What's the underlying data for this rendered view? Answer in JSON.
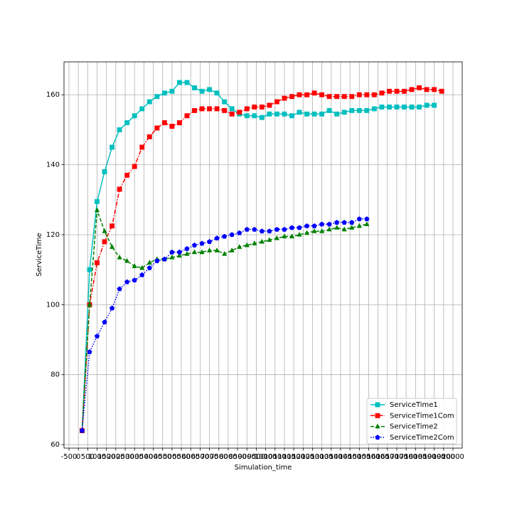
{
  "chart_data": {
    "type": "line",
    "xlabel": "Simulation_time",
    "ylabel": "ServiceTime",
    "xlim": [
      -766,
      20494
    ],
    "ylim": [
      59,
      169.4
    ],
    "xticks": [
      -500,
      0,
      500,
      1000,
      1500,
      2000,
      2500,
      3000,
      3500,
      4000,
      4500,
      5000,
      5500,
      6000,
      6500,
      7000,
      7500,
      8000,
      8500,
      9000,
      9500,
      10000,
      10500,
      11000,
      11500,
      12000,
      12500,
      13000,
      13500,
      14000,
      14500,
      15000,
      15500,
      16000,
      16500,
      17000,
      17500,
      18000,
      18500,
      19000,
      19500,
      20000
    ],
    "yticks": [
      60,
      80,
      100,
      120,
      140,
      160
    ],
    "grid": true,
    "legend": "lower right",
    "series": [
      {
        "name": "ServiceTime1",
        "color": "#00bfbf",
        "marker": "square",
        "linestyle": "solid",
        "x": [
          200,
          600,
          1000,
          1400,
          1800,
          2200,
          2600,
          3000,
          3400,
          3800,
          4200,
          4600,
          5000,
          5400,
          5800,
          6200,
          6600,
          7000,
          7400,
          7800,
          8200,
          8600,
          9000,
          9400,
          9800,
          10200,
          10600,
          11000,
          11400,
          11800,
          12200,
          12600,
          13000,
          13400,
          13800,
          14200,
          14600,
          15000,
          15400,
          15800,
          16200,
          16600,
          17000,
          17400,
          17800,
          18200,
          18600,
          19000
        ],
        "values": [
          64,
          110,
          129.5,
          138,
          145,
          150,
          152,
          154,
          156,
          158,
          159.5,
          160.5,
          161,
          163.5,
          163.5,
          162,
          161,
          161.5,
          160.5,
          158,
          156,
          154.5,
          154,
          154,
          153.5,
          154.5,
          154.5,
          154.5,
          154,
          155,
          154.5,
          154.5,
          154.5,
          155.5,
          154.5,
          155,
          155.5,
          155.5,
          155.5,
          156,
          156.5,
          156.5,
          156.5,
          156.5,
          156.5,
          156.5,
          157,
          157
        ]
      },
      {
        "name": "ServiceTime1Com",
        "color": "#ff0000",
        "marker": "square",
        "linestyle": "dashdot",
        "x": [
          200,
          600,
          1000,
          1400,
          1800,
          2200,
          2600,
          3000,
          3400,
          3800,
          4200,
          4600,
          5000,
          5400,
          5800,
          6200,
          6600,
          7000,
          7400,
          7800,
          8200,
          8600,
          9000,
          9400,
          9800,
          10200,
          10600,
          11000,
          11400,
          11800,
          12200,
          12600,
          13000,
          13400,
          13800,
          14200,
          14600,
          15000,
          15400,
          15800,
          16200,
          16600,
          17000,
          17400,
          17800,
          18200,
          18600,
          19000,
          19400
        ],
        "values": [
          64,
          100,
          112,
          118,
          122.5,
          133,
          137,
          139.5,
          145,
          148,
          150.5,
          152,
          151,
          152,
          154,
          155.5,
          156,
          156,
          156,
          155.5,
          154.5,
          155,
          156,
          156.5,
          156.5,
          157,
          158,
          159,
          159.5,
          160,
          160,
          160.5,
          160,
          159.5,
          159.5,
          159.5,
          159.5,
          160,
          160,
          160,
          160.5,
          161,
          161,
          161,
          161.5,
          162,
          161.5,
          161.5,
          161
        ]
      },
      {
        "name": "ServiceTime2",
        "color": "#008000",
        "marker": "triangle",
        "linestyle": "dashed",
        "x": [
          200,
          600,
          1000,
          1400,
          1800,
          2200,
          2600,
          3000,
          3400,
          3800,
          4200,
          4600,
          5000,
          5400,
          5800,
          6200,
          6600,
          7000,
          7400,
          7800,
          8200,
          8600,
          9000,
          9400,
          9800,
          10200,
          10600,
          11000,
          11400,
          11800,
          12200,
          12600,
          13000,
          13400,
          13800,
          14200,
          14600,
          15000,
          15400
        ],
        "values": [
          64,
          100,
          127,
          121,
          116.5,
          113.5,
          112.5,
          111,
          110.5,
          112,
          113,
          113,
          113.5,
          114,
          114.5,
          115,
          115,
          115.5,
          115.5,
          114.5,
          115.5,
          116.5,
          117,
          117.5,
          118,
          118.5,
          119,
          119.5,
          119.5,
          120,
          120.5,
          121,
          121,
          121.5,
          122,
          121.5,
          122,
          122.5,
          123
        ]
      },
      {
        "name": "ServiceTime2Com",
        "color": "#0000ff",
        "marker": "pentagon",
        "linestyle": "dotted",
        "x": [
          200,
          600,
          1000,
          1400,
          1800,
          2200,
          2600,
          3000,
          3400,
          3800,
          4200,
          4600,
          5000,
          5400,
          5800,
          6200,
          6600,
          7000,
          7400,
          7800,
          8200,
          8600,
          9000,
          9400,
          9800,
          10200,
          10600,
          11000,
          11400,
          11800,
          12200,
          12600,
          13000,
          13400,
          13800,
          14200,
          14600,
          15000,
          15400
        ],
        "values": [
          64,
          86.5,
          91,
          95,
          99,
          104.5,
          106.5,
          107,
          108.5,
          110.5,
          112.5,
          113,
          115,
          115,
          116,
          117,
          117.5,
          118,
          119,
          119.5,
          120,
          120.5,
          121.5,
          121.5,
          121,
          121,
          121.5,
          121.5,
          122,
          122,
          122.5,
          122.5,
          123,
          123,
          123.5,
          123.5,
          123.5,
          124.5,
          124.5
        ]
      }
    ]
  }
}
